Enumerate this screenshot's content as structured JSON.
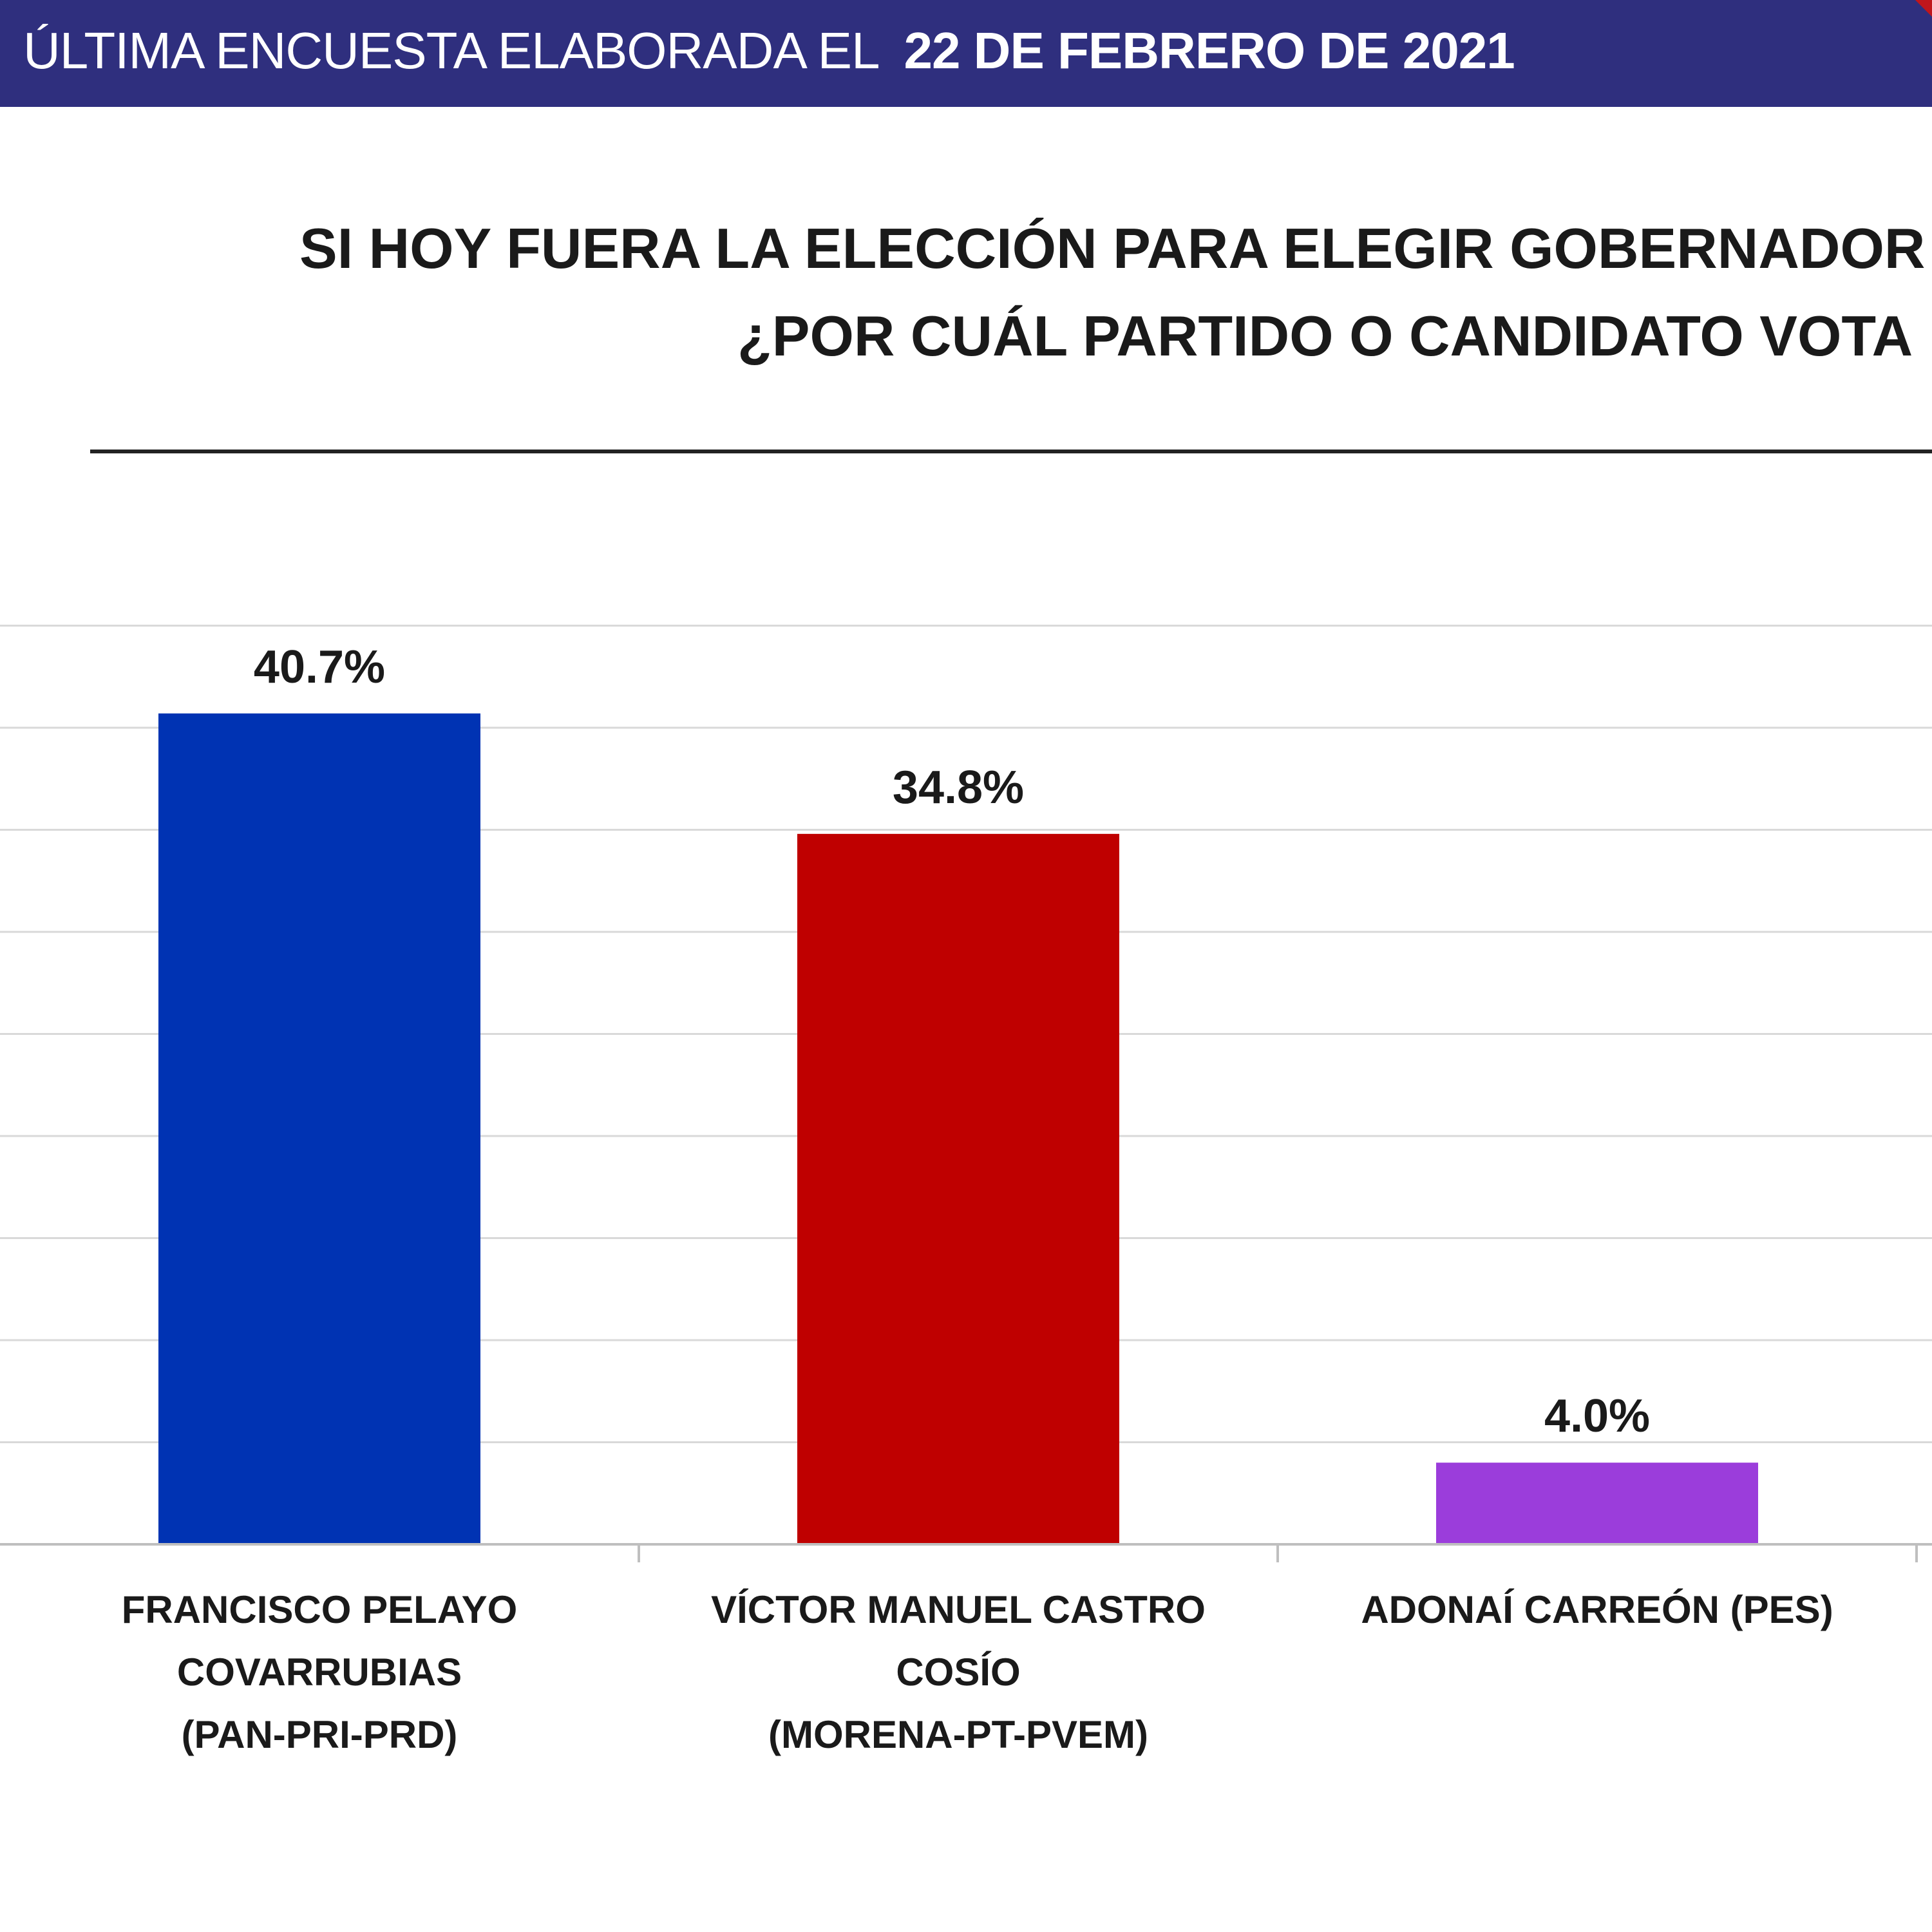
{
  "header": {
    "prefix": "ÚLTIMA ENCUESTA ELABORADA EL",
    "date": "22 DE FEBRERO DE 2021",
    "background_color": "#2f2f7e",
    "accent_color": "#c0161c"
  },
  "chart_data": {
    "type": "bar",
    "title_lines": [
      "SI HOY FUERA LA ELECCIÓN PARA ELEGIR GOBERNADOR",
      "¿POR CUÁL PARTIDO O CANDIDATO VOTA"
    ],
    "categories": [
      [
        "FRANCISCO PELAYO",
        "COVARRUBIAS",
        "(PAN-PRI-PRD)"
      ],
      [
        "VÍCTOR MANUEL CASTRO",
        "COSÍO",
        "(MORENA-PT-PVEM)"
      ],
      [
        "ADONAÍ CARREÓN (PES)"
      ]
    ],
    "values": [
      40.7,
      34.8,
      4.0
    ],
    "value_labels": [
      "40.7%",
      "34.8%",
      "4.0%"
    ],
    "colors": [
      "#0033b3",
      "#bf0000",
      "#9b3ddb"
    ],
    "ylim": [
      0,
      45
    ],
    "grid": true,
    "legend": "none"
  }
}
